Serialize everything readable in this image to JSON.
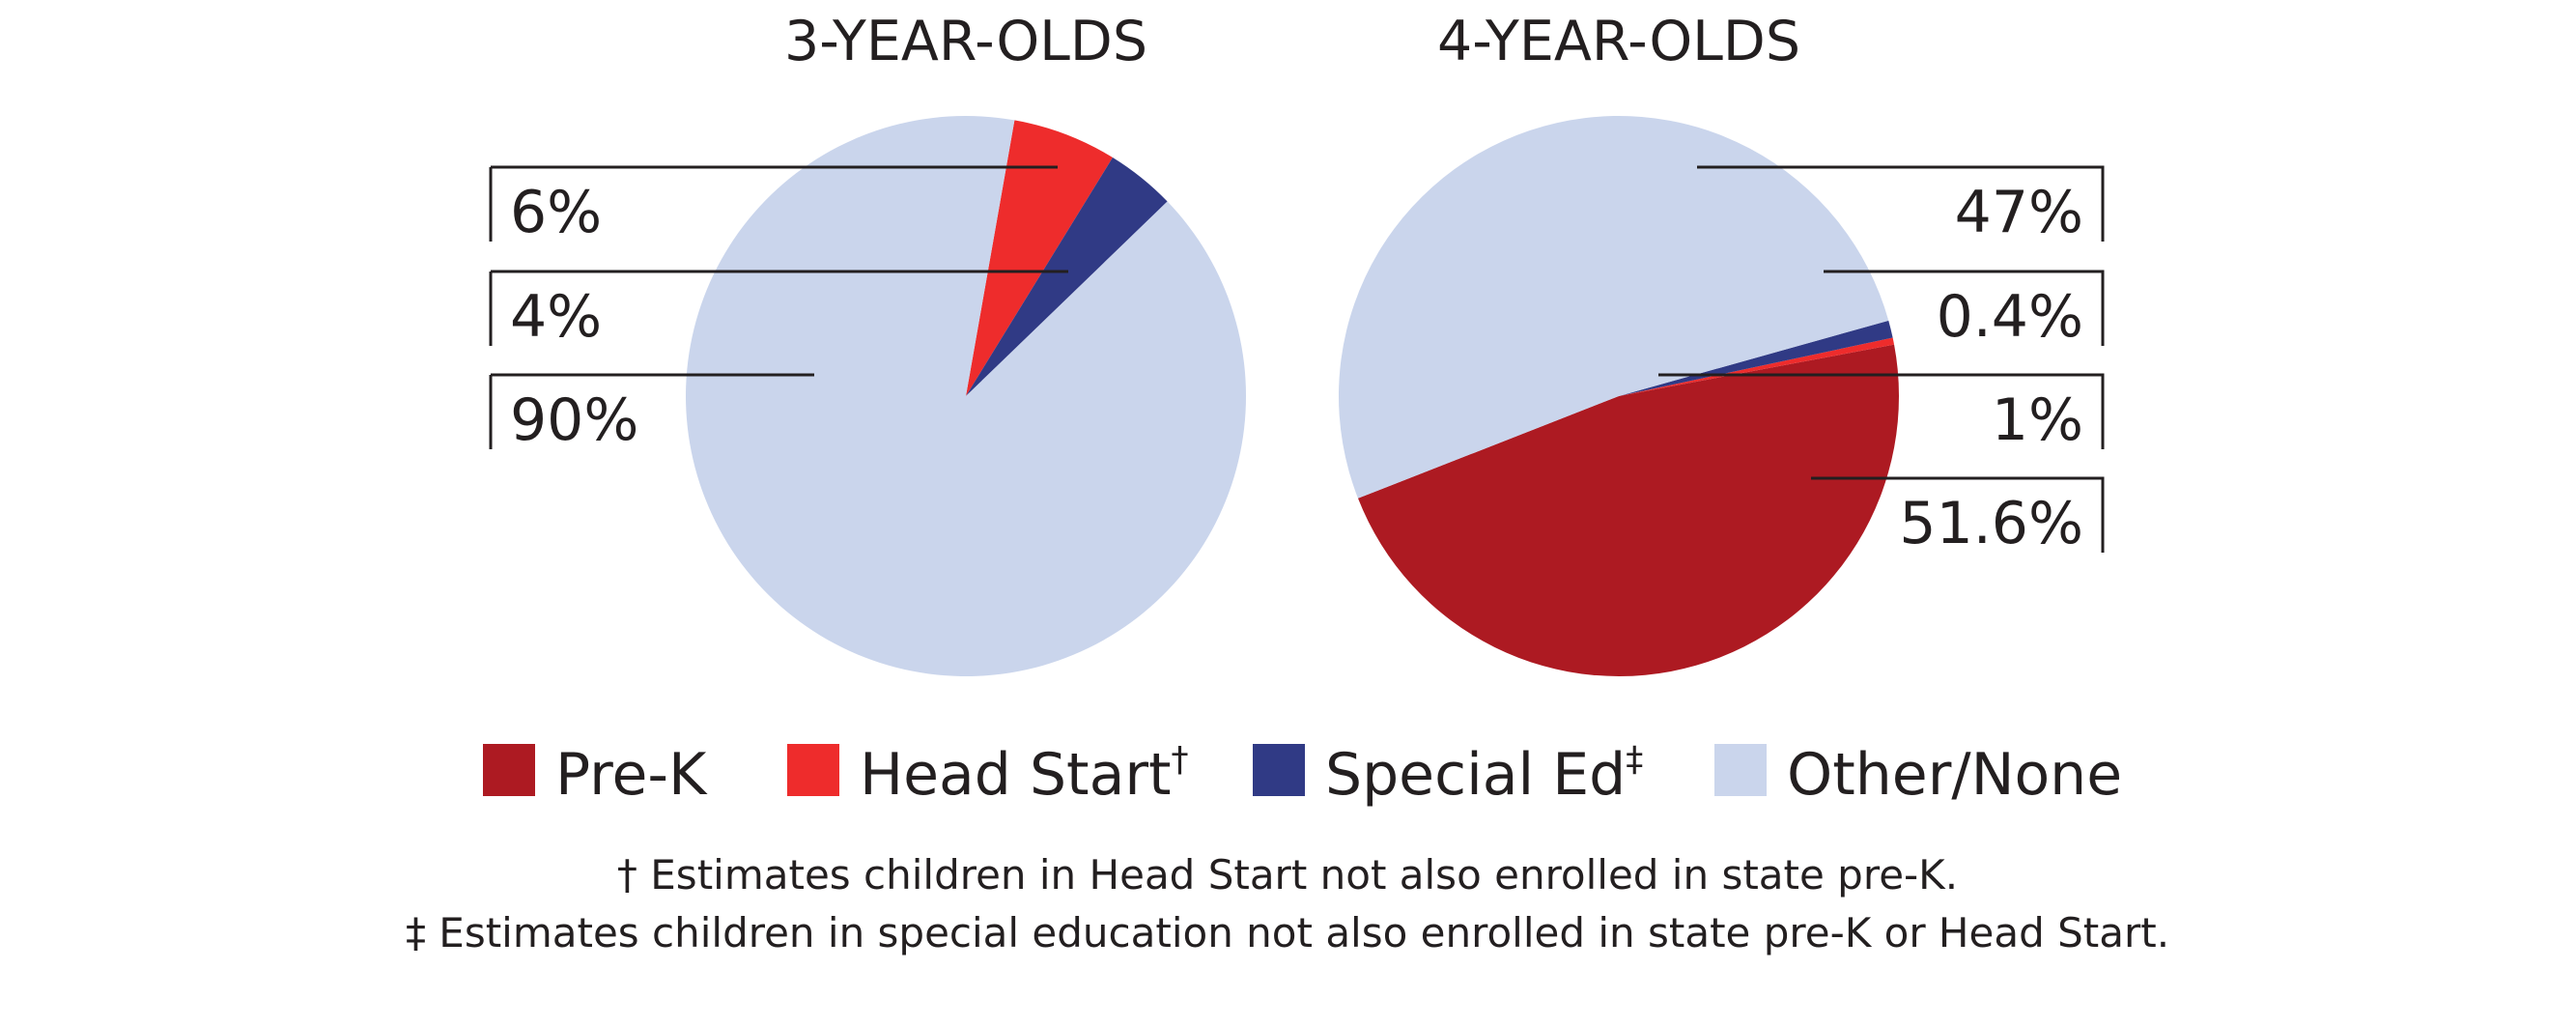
{
  "chart_data": [
    {
      "type": "pie",
      "title": "3-YEAR-OLDS",
      "slices": [
        {
          "category": "Pre-K",
          "value": 0,
          "label": ""
        },
        {
          "category": "Head Start",
          "value": 6,
          "label": "6%"
        },
        {
          "category": "Special Ed",
          "value": 4,
          "label": "4%"
        },
        {
          "category": "Other/None",
          "value": 90,
          "label": "90%"
        }
      ]
    },
    {
      "type": "pie",
      "title": "4-YEAR-OLDS",
      "slices": [
        {
          "category": "Pre-K",
          "value": 47,
          "label": "47%"
        },
        {
          "category": "Head Start",
          "value": 0.4,
          "label": "0.4%"
        },
        {
          "category": "Special Ed",
          "value": 1,
          "label": "1%"
        },
        {
          "category": "Other/None",
          "value": 51.6,
          "label": "51.6%"
        }
      ]
    }
  ],
  "legend": {
    "placement": "bottom",
    "items": [
      {
        "label": "Pre-K",
        "mark": "",
        "color": "#ad1a22"
      },
      {
        "label": "Head Start",
        "mark": "†",
        "color": "#ee2c2c"
      },
      {
        "label": "Special Ed",
        "mark": "‡",
        "color": "#303a85"
      },
      {
        "label": "Other/None",
        "mark": "",
        "color": "#cad5ec"
      }
    ]
  },
  "footnotes": [
    "† Estimates children in Head Start not also enrolled in state pre-K.",
    "‡ Estimates children in special education not also enrolled in state pre-K or Head Start."
  ]
}
